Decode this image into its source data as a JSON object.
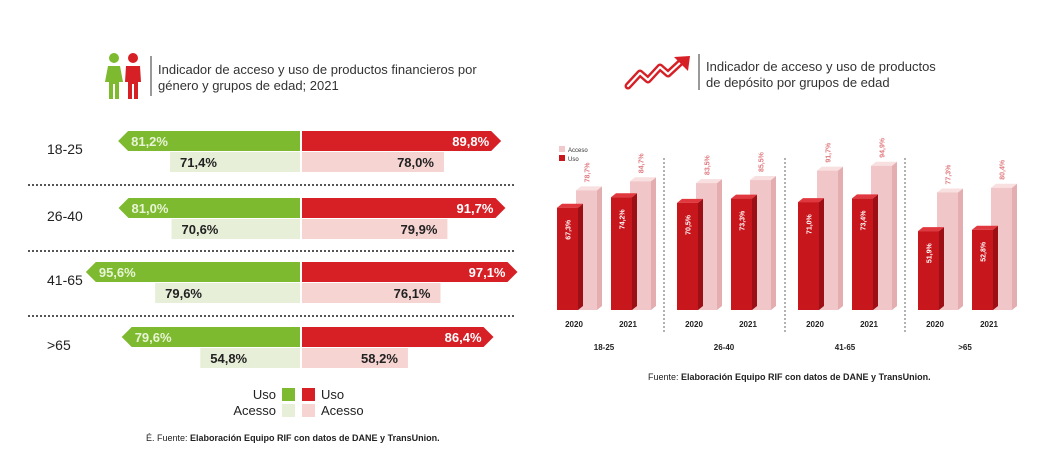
{
  "left": {
    "title_line1": "Indicador de acceso y uso de productos financieros por",
    "title_line2": "género y grupos de edad; 2021",
    "legend": {
      "uso": "Uso",
      "acceso": "Acesso"
    },
    "source_prefix": "É. Fuente:",
    "source": "Elaboración Equipo RIF con datos de DANE y TransUnion."
  },
  "right": {
    "title_line1": "Indicador de acceso y uso de productos",
    "title_line2": "de depósito por grupos de edad",
    "legend": {
      "acceso": "Acceso",
      "uso": "Uso"
    },
    "source_prefix": "Fuente:",
    "source": "Elaboración Equipo RIF con datos de DANE y TransUnion."
  },
  "colors": {
    "green": "#7dba2f",
    "green_light": "#e7efd8",
    "red": "#d71f26",
    "red_light": "#f6d4d2",
    "uso_bar": "#c8161d",
    "acceso_bar": "#f2c9cb"
  },
  "chart_data": [
    {
      "type": "bar",
      "title": "Indicador de acceso y uso de productos financieros por género y grupos de edad; 2021",
      "categories": [
        "18-25",
        "26-40",
        "41-65",
        ">65"
      ],
      "series": [
        {
          "name": "Mujeres - Uso",
          "values": [
            81.2,
            81.0,
            95.6,
            79.6
          ],
          "labels": [
            "81,2%",
            "81,0%",
            "95,6%",
            "79,6%"
          ]
        },
        {
          "name": "Mujeres - Acesso",
          "values": [
            71.4,
            70.6,
            79.6,
            54.8
          ],
          "labels": [
            "71,4%",
            "70,6%",
            "79,6%",
            "54,8%"
          ]
        },
        {
          "name": "Hombres - Uso",
          "values": [
            89.8,
            91.7,
            97.1,
            86.4
          ],
          "labels": [
            "89,8%",
            "91,7%",
            "97,1%",
            "86,4%"
          ]
        },
        {
          "name": "Hombres - Acesso",
          "values": [
            78.0,
            79.9,
            76.1,
            58.2
          ],
          "labels": [
            "78,0%",
            "79,9%",
            "76,1%",
            "58,2%"
          ]
        }
      ],
      "legend": [
        "Uso",
        "Acesso"
      ]
    },
    {
      "type": "bar",
      "title": "Indicador de acceso y uso de productos de depósito por grupos de edad",
      "groups": [
        "18-25",
        "26-40",
        "41-65",
        ">65"
      ],
      "years": [
        "2020",
        "2021"
      ],
      "series": [
        {
          "name": "Uso",
          "values": [
            67.3,
            74.2,
            70.5,
            73.3,
            71.0,
            73.4,
            51.9,
            52.8
          ],
          "labels": [
            "67,3%",
            "74,2%",
            "70,5%",
            "73,3%",
            "71,0%",
            "73,4%",
            "51,9%",
            "52,8%"
          ]
        },
        {
          "name": "Acceso",
          "values": [
            78.7,
            84.7,
            83.5,
            85.5,
            91.7,
            94.9,
            77.3,
            80.4
          ],
          "labels": [
            "78,7%",
            "84,7%",
            "83,5%",
            "85,5%",
            "91,7%",
            "94,9%",
            "77,3%",
            "80,4%"
          ]
        }
      ],
      "legend": [
        "Acceso",
        "Uso"
      ]
    }
  ]
}
